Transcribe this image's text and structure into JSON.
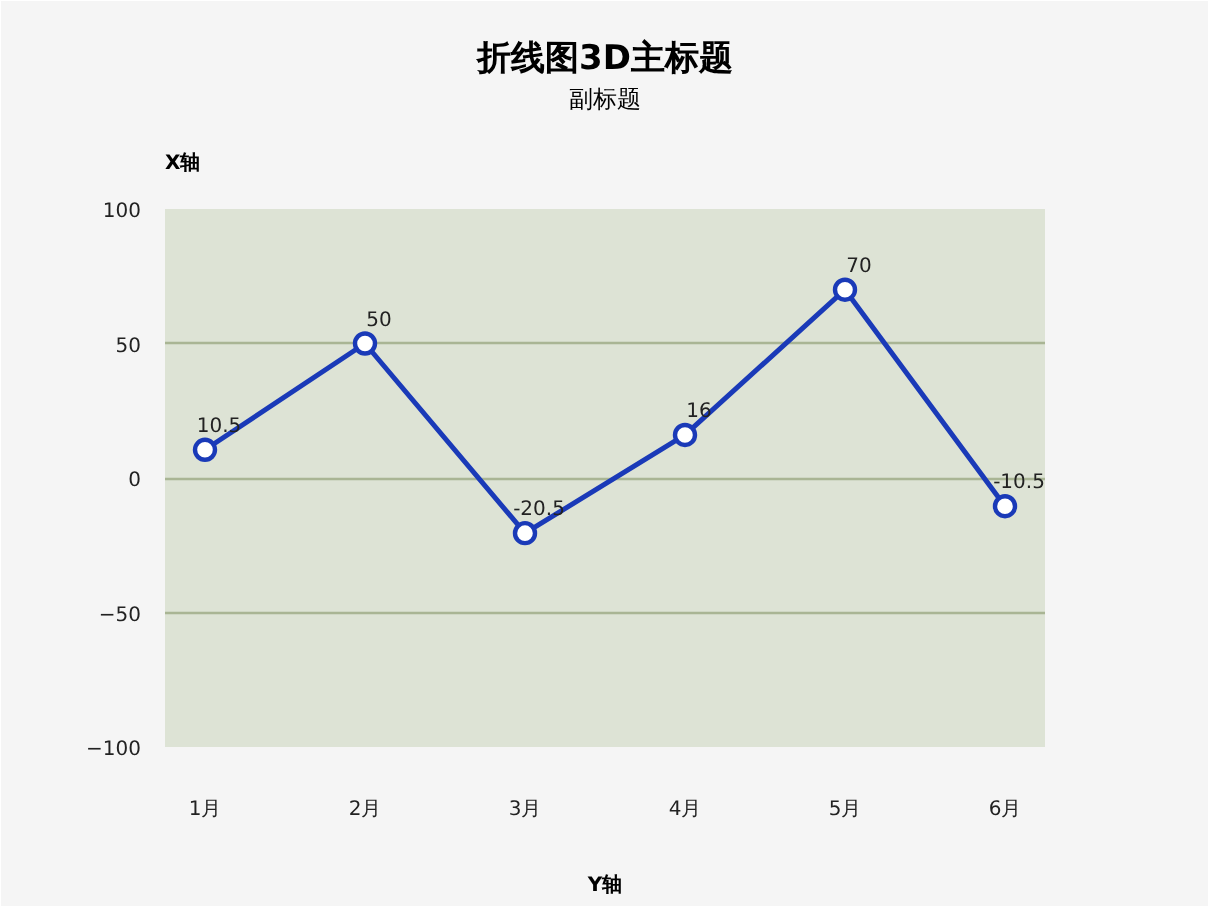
{
  "chart_data": {
    "type": "line",
    "title": "折线图3D主标题",
    "subtitle": "副标题",
    "ylabel": "X轴",
    "xlabel": "Y轴",
    "categories": [
      "1月",
      "2月",
      "3月",
      "4月",
      "5月",
      "6月"
    ],
    "series": [
      {
        "color": "#1a3ab8",
        "values": [
          10.5,
          50,
          -20.5,
          16,
          70,
          -10.5
        ]
      }
    ],
    "ylim": [
      -100,
      100
    ],
    "yticks": [
      -100,
      -50,
      0,
      50,
      100
    ],
    "grid": "y",
    "marker": "circle",
    "line_style": "solid",
    "data_labels": true
  }
}
